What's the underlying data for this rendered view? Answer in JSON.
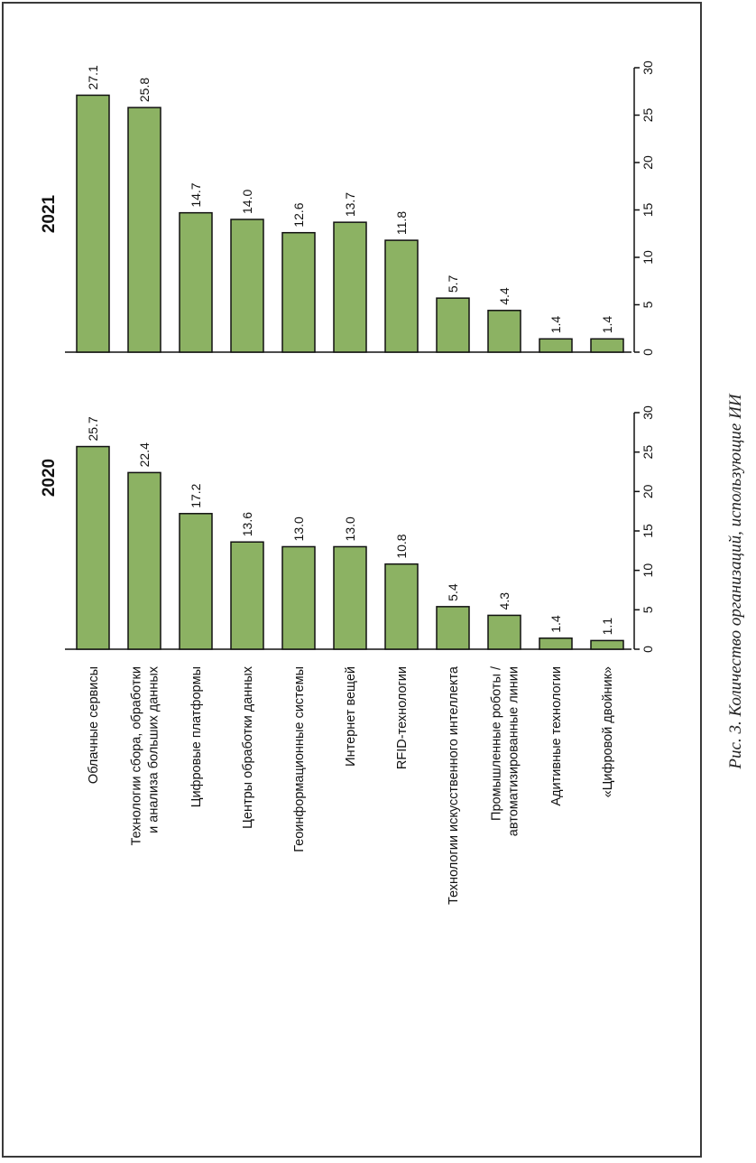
{
  "caption": "Рис. 3. Количество организаций, использующие ИИ",
  "colors": {
    "bar": "#8cb263",
    "bar_stroke": "#111111",
    "axis": "#111111"
  },
  "chart_data": [
    {
      "type": "bar",
      "orientation": "horizontal",
      "title": "2020",
      "categories": [
        "Облачные сервисы",
        "Технологии сбора, обработки и анализа больших данных",
        "Цифровые платформы",
        "Центры обработки данных",
        "Геоинформационные системы",
        "Интернет вещей",
        "RFID-технологии",
        "Технологии искусственного интеллекта",
        "Промышленные роботы / автоматизированные линии",
        "Адитивные технологии",
        "«Цифровой двойник»"
      ],
      "values": [
        25.7,
        22.4,
        17.2,
        13.6,
        13.0,
        13.0,
        10.8,
        5.4,
        4.3,
        1.4,
        1.1
      ],
      "value_labels": [
        "25.7",
        "22.4",
        "17.2",
        "13.6",
        "13.0",
        "13.0",
        "10.8",
        "5.4",
        "4.3",
        "1.4",
        "1.1"
      ],
      "xlim": [
        0,
        30
      ],
      "ticks": [
        "0",
        "5",
        "10",
        "15",
        "20",
        "25",
        "30"
      ],
      "grid": false
    },
    {
      "type": "bar",
      "orientation": "horizontal",
      "title": "2021",
      "categories": [
        "Облачные сервисы",
        "Технологии сбора, обработки и анализа больших данных",
        "Цифровые платформы",
        "Центры обработки данных",
        "Геоинформационные системы",
        "Интернет вещей",
        "RFID-технологии",
        "Технологии искусственного интеллекта",
        "Промышленные роботы / автоматизированные линии",
        "Адитивные технологии",
        "«Цифровой двойник»"
      ],
      "values": [
        27.1,
        25.8,
        14.7,
        14.0,
        12.6,
        13.7,
        11.8,
        5.7,
        4.4,
        1.4,
        1.4
      ],
      "value_labels": [
        "27.1",
        "25.8",
        "14.7",
        "14.0",
        "12.6",
        "13.7",
        "11.8",
        "5.7",
        "4.4",
        "1.4",
        "1.4"
      ],
      "xlim": [
        0,
        30
      ],
      "ticks": [
        "0",
        "5",
        "10",
        "15",
        "20",
        "25",
        "30"
      ],
      "grid": false
    }
  ],
  "category_label_lines": [
    [
      "Облачные сервисы"
    ],
    [
      "Технологии сбора, обработки",
      "и анализа больших данных"
    ],
    [
      "Цифровые платформы"
    ],
    [
      "Центры обработки данных"
    ],
    [
      "Геоинформационные системы"
    ],
    [
      "Интернет вещей"
    ],
    [
      "RFID-технологии"
    ],
    [
      "Технологии искусственного интеллекта"
    ],
    [
      "Промышленные роботы /",
      "автоматизированные линии"
    ],
    [
      "Адитивные технологии"
    ],
    [
      "«Цифровой двойник»"
    ]
  ]
}
